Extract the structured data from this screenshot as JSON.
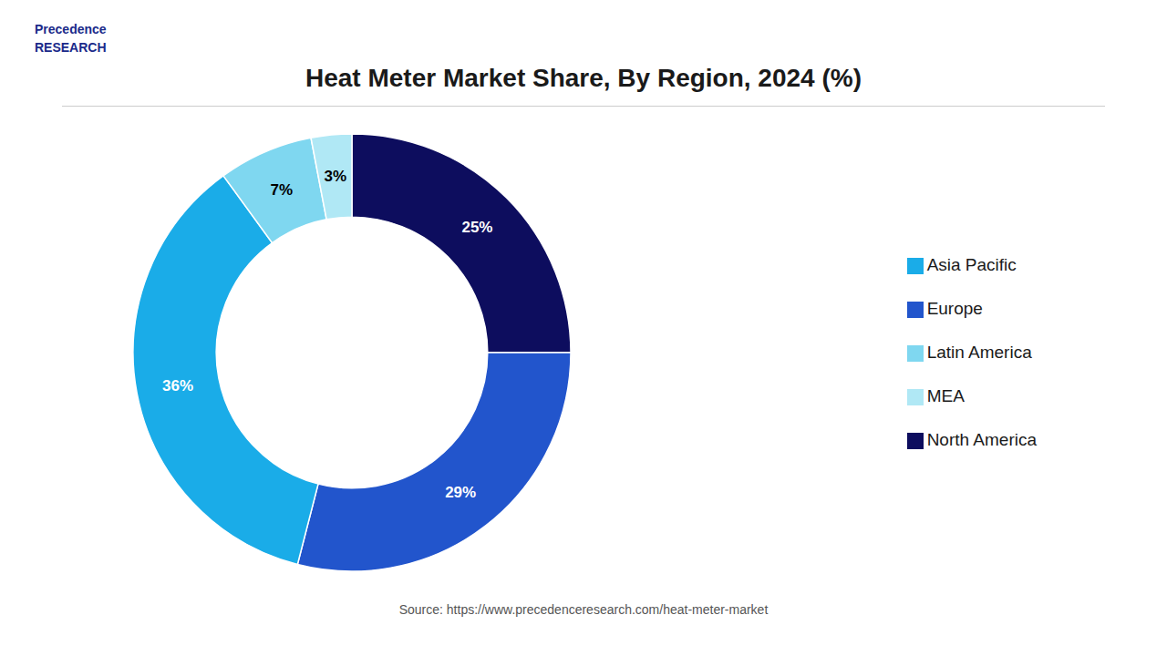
{
  "chart_data": {
    "type": "pie",
    "title": "Heat Meter Market Share, By Region, 2024 (%)",
    "categories": [
      "North America",
      "Europe",
      "Asia Pacific",
      "Latin America",
      "MEA"
    ],
    "values": [
      25,
      29,
      36,
      7,
      3
    ],
    "value_labels": [
      "25%",
      "29%",
      "36%",
      "7%",
      "3%"
    ],
    "colors": [
      "#0d0d5e",
      "#2255cc",
      "#1aace8",
      "#7fd7f0",
      "#b0e8f5"
    ],
    "data_labels": true,
    "legend": "right",
    "annotations": [
      "Precedence",
      "RESEARCH",
      "Source: https://www.precedenceresearch.com/heat-meter-market"
    ]
  }
}
